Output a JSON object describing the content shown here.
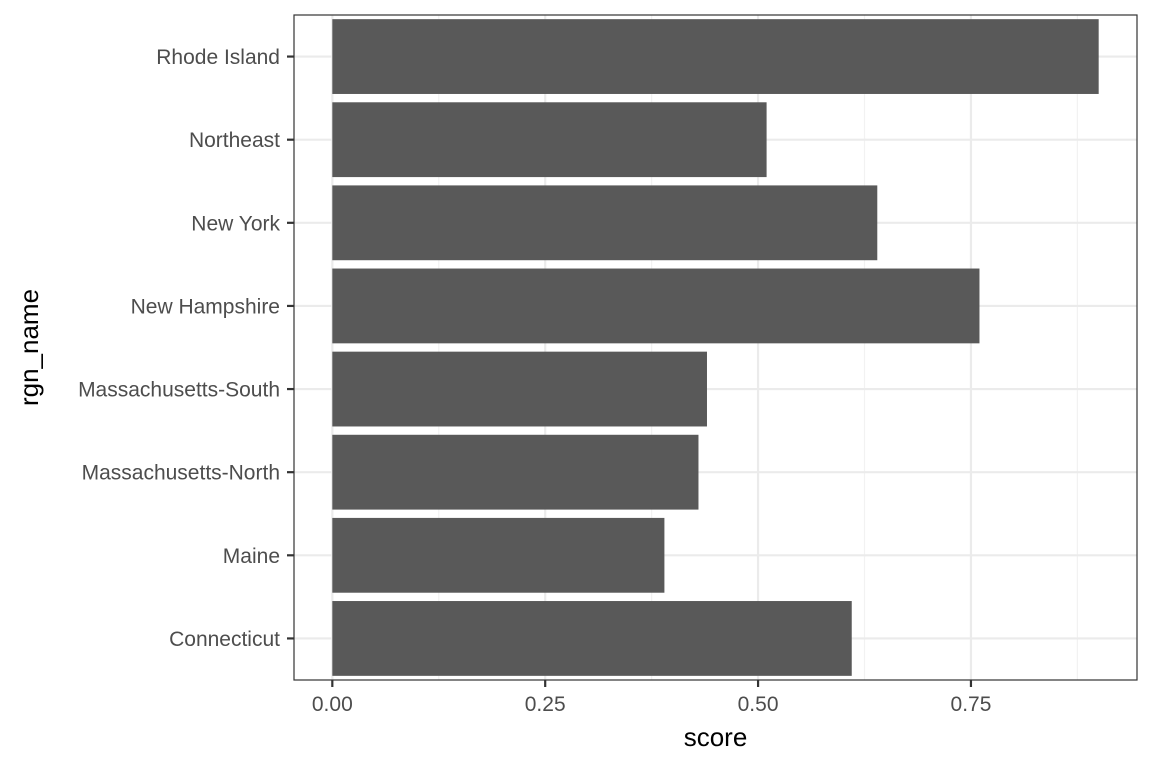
{
  "chart_data": {
    "type": "bar",
    "orientation": "horizontal",
    "categories": [
      "Connecticut",
      "Maine",
      "Massachusetts-North",
      "Massachusetts-South",
      "New Hampshire",
      "New York",
      "Northeast",
      "Rhode Island"
    ],
    "values": [
      0.61,
      0.39,
      0.43,
      0.44,
      0.76,
      0.64,
      0.51,
      0.9
    ],
    "xlabel": "score",
    "ylabel": "rgn_name",
    "xlim": [
      -0.045,
      0.945
    ],
    "x_ticks": [
      0.0,
      0.25,
      0.5,
      0.75
    ],
    "x_tick_labels": [
      "0.00",
      "0.25",
      "0.50",
      "0.75"
    ],
    "grid": true,
    "colors": {
      "bar": "#595959",
      "grid_major": "#ebebeb",
      "grid_minor": "#f2f2f2",
      "panel_border": "#333333",
      "tick_text": "#4d4d4d",
      "axis_title": "#000000"
    }
  }
}
